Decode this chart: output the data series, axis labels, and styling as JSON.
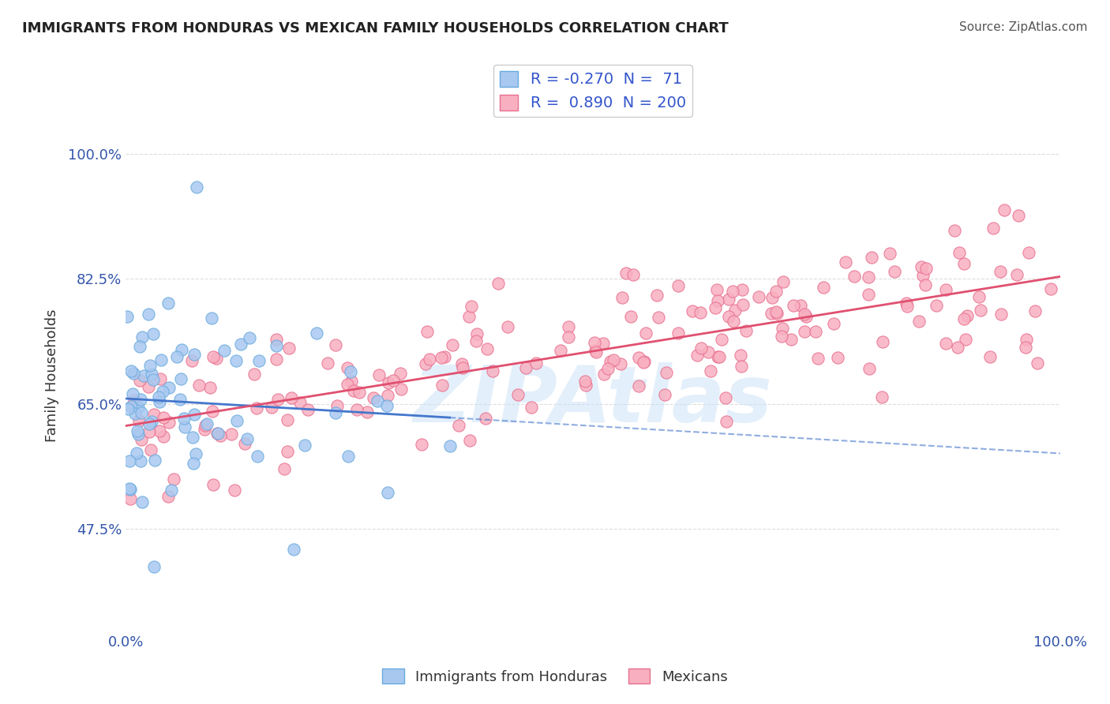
{
  "title": "IMMIGRANTS FROM HONDURAS VS MEXICAN FAMILY HOUSEHOLDS CORRELATION CHART",
  "source": "Source: ZipAtlas.com",
  "xlabel": "",
  "ylabel": "Family Households",
  "xlim": [
    0,
    100
  ],
  "ylim": [
    33,
    105
  ],
  "yticks": [
    47.5,
    65.0,
    82.5,
    100.0
  ],
  "xticks": [
    0,
    100
  ],
  "xtick_labels": [
    "0.0%",
    "100.0%"
  ],
  "ytick_labels": [
    "47.5%",
    "65.0%",
    "82.5%",
    "100.0%"
  ],
  "series1": {
    "label": "Immigrants from Honduras",
    "R": -0.27,
    "N": 71,
    "color": "#a8c8f0",
    "edge_color": "#6aaade",
    "line_color": "#4477cc"
  },
  "series2": {
    "label": "Mexicans",
    "R": 0.89,
    "N": 200,
    "color": "#f8b0c0",
    "edge_color": "#e87090",
    "line_color": "#e05070"
  },
  "watermark": "ZIPAtlas",
  "watermark_color": "#c8e0f8",
  "background_color": "#ffffff",
  "grid_color": "#dddddd"
}
